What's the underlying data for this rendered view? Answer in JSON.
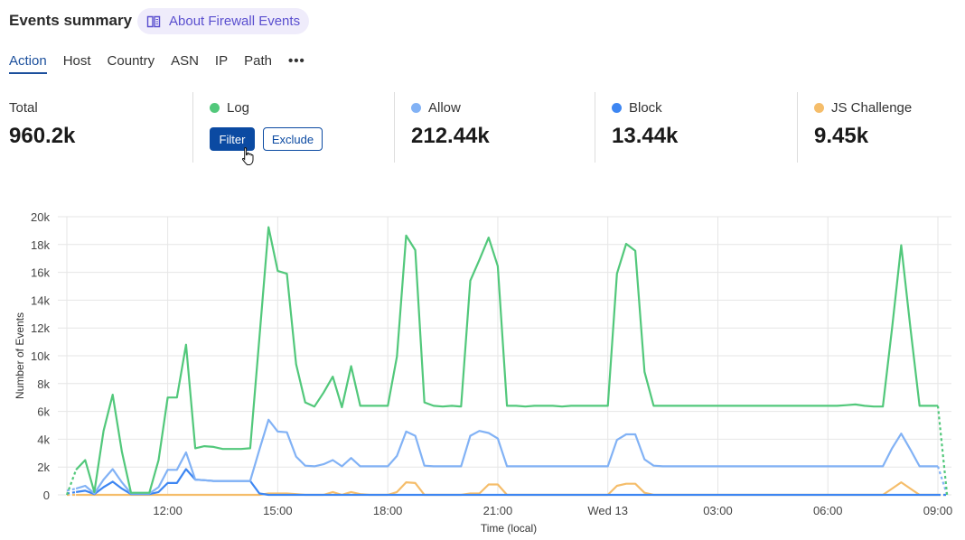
{
  "header": {
    "title": "Events summary",
    "about_link": "About Firewall Events",
    "about_icon": "book-icon"
  },
  "tabs": [
    {
      "label": "Action",
      "active": true
    },
    {
      "label": "Host"
    },
    {
      "label": "Country"
    },
    {
      "label": "ASN"
    },
    {
      "label": "IP"
    },
    {
      "label": "Path"
    },
    {
      "label": "•••"
    }
  ],
  "stats": {
    "total": {
      "label": "Total",
      "value": "960.2k"
    },
    "log": {
      "label": "Log",
      "value": "",
      "color": "#52c87b",
      "filter_label": "Filter",
      "exclude_label": "Exclude"
    },
    "allow": {
      "label": "Allow",
      "value": "212.44k",
      "color": "#82b2f5"
    },
    "block": {
      "label": "Block",
      "value": "13.44k",
      "color": "#3d86f2"
    },
    "js_challenge": {
      "label": "JS Challenge",
      "value": "9.45k",
      "color": "#f5bd6a"
    }
  },
  "chart_data": {
    "type": "line",
    "xlabel": "Time (local)",
    "ylabel": "Number of Events",
    "ylim": [
      0,
      20000
    ],
    "yticks": [
      "0",
      "2k",
      "4k",
      "6k",
      "8k",
      "10k",
      "12k",
      "14k",
      "16k",
      "18k",
      "20k"
    ],
    "xticks": [
      "12:00",
      "15:00",
      "18:00",
      "21:00",
      "Wed 13",
      "03:00",
      "06:00",
      "09:00"
    ],
    "grid": true,
    "x": [
      "09:15",
      "09:30",
      "09:45",
      "10:00",
      "10:15",
      "10:30",
      "10:45",
      "11:00",
      "11:15",
      "11:30",
      "11:45",
      "12:00",
      "12:15",
      "12:30",
      "12:45",
      "13:00",
      "13:15",
      "13:30",
      "13:45",
      "14:00",
      "14:15",
      "14:30",
      "14:45",
      "15:00",
      "15:15",
      "15:30",
      "15:45",
      "16:00",
      "16:15",
      "16:30",
      "16:45",
      "17:00",
      "17:15",
      "17:30",
      "17:45",
      "18:00",
      "18:15",
      "18:30",
      "18:45",
      "19:00",
      "19:15",
      "19:30",
      "19:45",
      "20:00",
      "20:15",
      "20:30",
      "20:45",
      "21:00",
      "21:15",
      "21:30",
      "21:45",
      "22:00",
      "22:15",
      "22:30",
      "22:45",
      "23:00",
      "23:15",
      "23:30",
      "23:45",
      "00:00",
      "00:15",
      "00:30",
      "00:45",
      "01:00",
      "01:15",
      "01:30",
      "01:45",
      "02:00",
      "02:15",
      "02:30",
      "02:45",
      "03:00",
      "03:15",
      "03:30",
      "03:45",
      "04:00",
      "04:15",
      "04:30",
      "04:45",
      "05:00",
      "05:15",
      "05:30",
      "05:45",
      "06:00",
      "06:15",
      "06:30",
      "06:45",
      "07:00",
      "07:15",
      "07:30",
      "07:45",
      "08:00",
      "08:15",
      "08:30",
      "08:45",
      "09:00",
      "09:15"
    ],
    "series": [
      {
        "name": "Log",
        "color": "#52c87b",
        "values": [
          0,
          1800,
          2500,
          200,
          4600,
          7200,
          3100,
          150,
          150,
          150,
          2500,
          7000,
          7000,
          10800,
          3350,
          3500,
          3450,
          3300,
          3300,
          3300,
          3350,
          11300,
          19250,
          16100,
          15900,
          9400,
          6650,
          6350,
          7350,
          8500,
          6300,
          9250,
          6400,
          6400,
          6400,
          6400,
          9950,
          18650,
          17600,
          6650,
          6400,
          6350,
          6400,
          6350,
          15400,
          16900,
          18500,
          16450,
          6400,
          6400,
          6350,
          6400,
          6400,
          6400,
          6350,
          6400,
          6400,
          6400,
          6400,
          6400,
          15900,
          18050,
          17550,
          8850,
          6400,
          6400,
          6400,
          6400,
          6400,
          6400,
          6400,
          6400,
          6400,
          6400,
          6400,
          6400,
          6400,
          6400,
          6400,
          6400,
          6400,
          6400,
          6400,
          6400,
          6400,
          6450,
          6500,
          6400,
          6350,
          6350,
          12000,
          17950,
          12000,
          6400,
          6400,
          6400,
          0
        ]
      },
      {
        "name": "Allow",
        "color": "#82b2f5",
        "values": [
          300,
          450,
          650,
          100,
          1100,
          1850,
          900,
          100,
          100,
          100,
          550,
          1800,
          1800,
          3050,
          1100,
          1050,
          1000,
          1000,
          1000,
          1000,
          1000,
          3250,
          5400,
          4550,
          4500,
          2750,
          2100,
          2050,
          2200,
          2500,
          2050,
          2650,
          2050,
          2050,
          2050,
          2050,
          2800,
          4550,
          4250,
          2100,
          2050,
          2050,
          2050,
          2050,
          4250,
          4600,
          4450,
          4050,
          2050,
          2050,
          2050,
          2050,
          2050,
          2050,
          2050,
          2050,
          2050,
          2050,
          2050,
          2050,
          3950,
          4350,
          4350,
          2550,
          2100,
          2050,
          2050,
          2050,
          2050,
          2050,
          2050,
          2050,
          2050,
          2050,
          2050,
          2050,
          2050,
          2050,
          2050,
          2050,
          2050,
          2050,
          2050,
          2050,
          2050,
          2050,
          2050,
          2050,
          2050,
          2050,
          3350,
          4400,
          3250,
          2050,
          2050,
          2050,
          0
        ]
      },
      {
        "name": "Block",
        "color": "#3d86f2",
        "values": [
          100,
          200,
          300,
          50,
          550,
          950,
          450,
          50,
          50,
          50,
          200,
          850,
          850,
          1850,
          1100,
          1050,
          1000,
          1000,
          1000,
          1000,
          1000,
          100,
          0,
          0,
          0,
          0,
          0,
          0,
          0,
          0,
          0,
          0,
          0,
          0,
          0,
          0,
          0,
          0,
          0,
          0,
          0,
          0,
          0,
          0,
          0,
          0,
          0,
          0,
          0,
          0,
          0,
          0,
          0,
          0,
          0,
          0,
          0,
          0,
          0,
          0,
          0,
          0,
          0,
          0,
          0,
          0,
          0,
          0,
          0,
          0,
          0,
          0,
          0,
          0,
          0,
          0,
          0,
          0,
          0,
          0,
          0,
          0,
          0,
          0,
          0,
          0,
          0,
          0,
          0,
          0,
          0,
          0,
          0,
          0,
          0,
          0,
          0
        ]
      },
      {
        "name": "JS Challenge",
        "color": "#f5bd6a",
        "values": [
          0,
          0,
          0,
          0,
          0,
          0,
          0,
          0,
          0,
          0,
          0,
          0,
          0,
          0,
          0,
          0,
          0,
          0,
          0,
          0,
          0,
          0,
          100,
          100,
          100,
          50,
          0,
          0,
          0,
          200,
          0,
          200,
          50,
          0,
          0,
          0,
          200,
          900,
          850,
          0,
          0,
          0,
          0,
          0,
          100,
          100,
          750,
          750,
          0,
          0,
          0,
          0,
          0,
          0,
          0,
          0,
          0,
          0,
          0,
          0,
          650,
          800,
          800,
          150,
          0,
          0,
          0,
          0,
          0,
          0,
          0,
          0,
          0,
          0,
          0,
          0,
          0,
          0,
          0,
          0,
          0,
          0,
          0,
          0,
          0,
          0,
          0,
          0,
          0,
          0,
          450,
          900,
          450,
          0,
          0,
          0,
          0
        ]
      }
    ]
  }
}
